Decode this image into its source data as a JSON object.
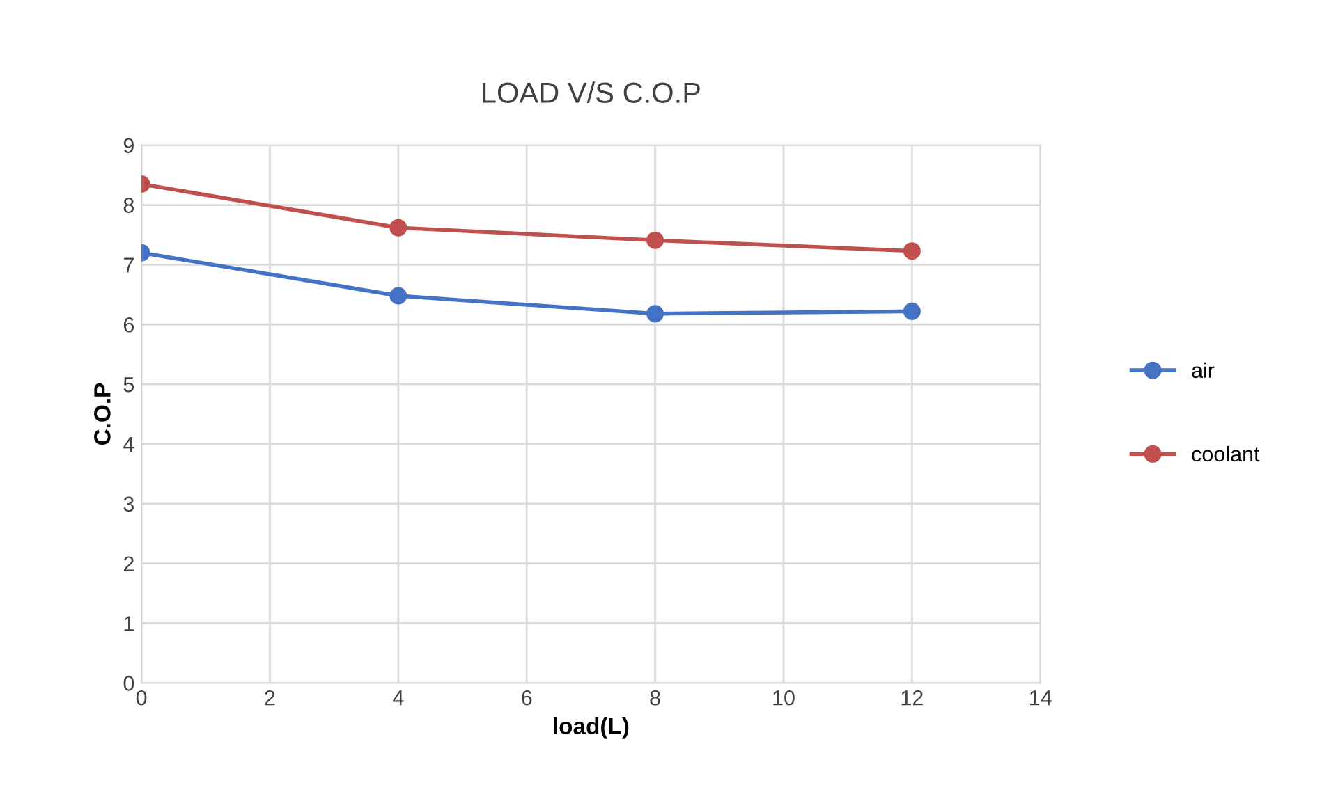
{
  "chart_data": {
    "type": "line",
    "title": "LOAD V/S C.O.P",
    "xlabel": "load(L)",
    "ylabel": "C.O.P",
    "x": [
      0,
      4,
      8,
      12
    ],
    "series": [
      {
        "name": "air",
        "color": "#4472c4",
        "values": [
          7.2,
          6.48,
          6.18,
          6.22
        ]
      },
      {
        "name": "coolant",
        "color": "#c0504d",
        "values": [
          8.35,
          7.62,
          7.41,
          7.23
        ]
      }
    ],
    "xlim": [
      0,
      14
    ],
    "xticks": [
      0,
      2,
      4,
      6,
      8,
      10,
      12,
      14
    ],
    "ylim": [
      0,
      9
    ],
    "yticks": [
      0,
      1,
      2,
      3,
      4,
      5,
      6,
      7,
      8,
      9
    ],
    "grid": true,
    "legend": "right",
    "marker": "circle",
    "line_style": "solid"
  }
}
